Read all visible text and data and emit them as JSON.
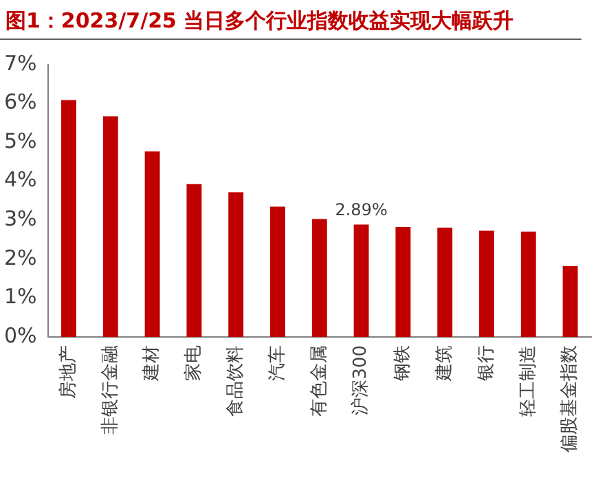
{
  "chart_data": {
    "type": "bar",
    "title": "图1：2023/7/25 当日多个行业指数收益实现大幅跃升",
    "categories": [
      "房地产",
      "非银行金融",
      "建材",
      "家电",
      "食品饮料",
      "汽车",
      "有色金属",
      "沪深300",
      "钢铁",
      "建筑",
      "银行",
      "轻工制造",
      "偏股基金指数"
    ],
    "values": [
      6.09,
      5.67,
      4.77,
      3.93,
      3.72,
      3.35,
      3.03,
      2.89,
      2.83,
      2.81,
      2.73,
      2.71,
      1.82
    ],
    "value_labels": [
      null,
      null,
      null,
      null,
      null,
      null,
      null,
      "2.89%",
      null,
      null,
      null,
      null,
      null
    ],
    "color": "#c00000",
    "ylim": [
      0,
      7
    ],
    "yticks": [
      {
        "value": 0,
        "label": "0%"
      },
      {
        "value": 1,
        "label": "1%"
      },
      {
        "value": 2,
        "label": "2%"
      },
      {
        "value": 3,
        "label": "3%"
      },
      {
        "value": 4,
        "label": "4%"
      },
      {
        "value": 5,
        "label": "5%"
      },
      {
        "value": 6,
        "label": "6%"
      },
      {
        "value": 7,
        "label": "7%"
      }
    ],
    "grid": false,
    "legend": false
  }
}
